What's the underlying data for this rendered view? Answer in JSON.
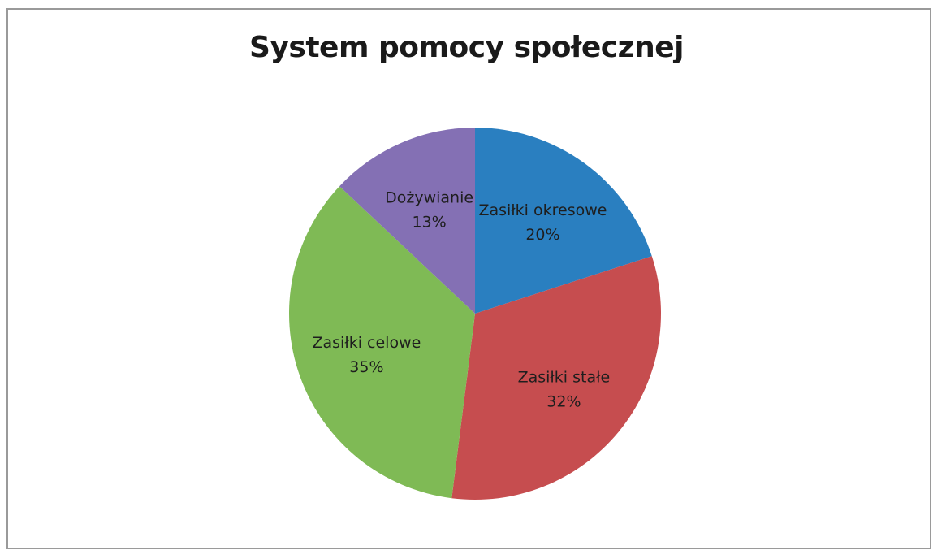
{
  "chart_data": {
    "type": "pie",
    "title": "System pomocy społecznej",
    "slices": [
      {
        "label": "Zasiłki okresowe",
        "value": 20,
        "value_label": "20%",
        "color": "#2a7fc0"
      },
      {
        "label": "Zasiłki stałe",
        "value": 32,
        "value_label": "32%",
        "color": "#c64d4f"
      },
      {
        "label": "Zasiłki celowe",
        "value": 35,
        "value_label": "35%",
        "color": "#7fba55"
      },
      {
        "label": "Dożywianie",
        "value": 13,
        "value_label": "13%",
        "color": "#8470b4"
      }
    ],
    "start_angle_deg": 0,
    "direction": "clockwise",
    "legend": "none",
    "labels_inside": true
  }
}
